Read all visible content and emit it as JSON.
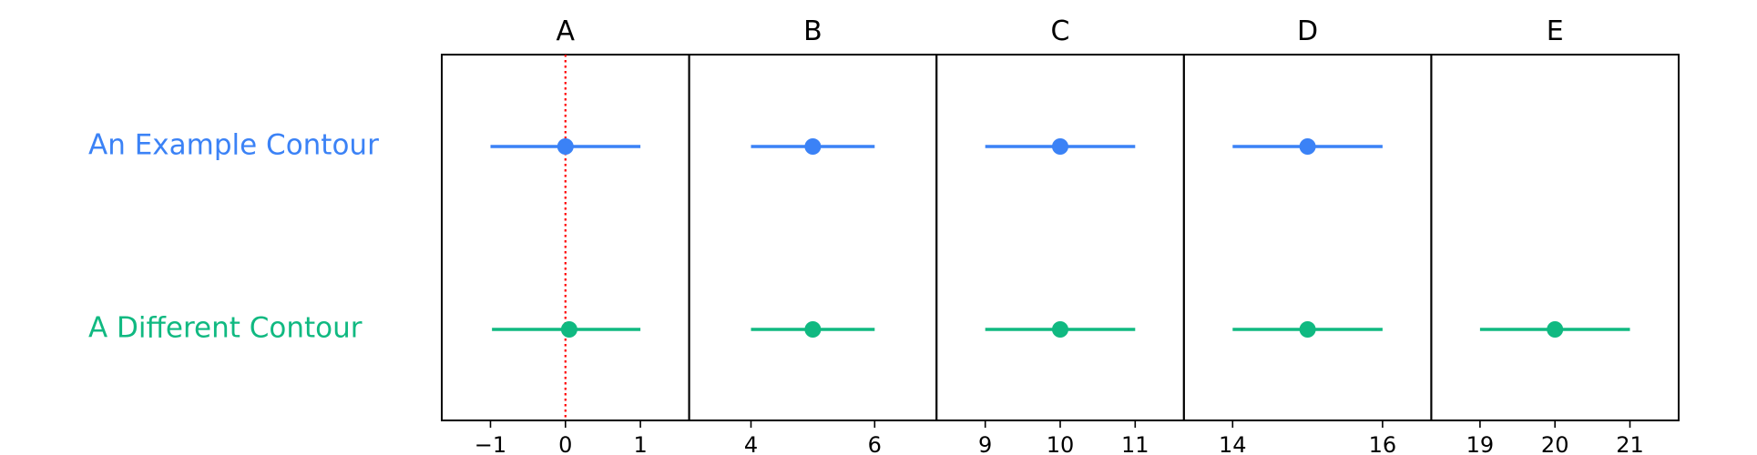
{
  "chart_data": {
    "type": "forest",
    "title": "",
    "xlabel": "",
    "ylabel": "",
    "grid": false,
    "legend": "none",
    "rows": [
      {
        "label": "An Example Contour",
        "color": "#3b82f6"
      },
      {
        "label": "A Different Contour",
        "color": "#10b981"
      }
    ],
    "panels": [
      {
        "title": "A",
        "xlim": [
          -1.65,
          1.65
        ],
        "ticks": [
          -1,
          0,
          1
        ],
        "tick_labels": [
          "−1",
          "0",
          "1"
        ],
        "reference_line": {
          "x": 0,
          "color": "#ff0000",
          "style": "dotted"
        },
        "points": [
          {
            "row": 0,
            "value": 0,
            "low": -1,
            "high": 1
          },
          {
            "row": 1,
            "value": 0.05,
            "low": -0.98,
            "high": 1
          }
        ]
      },
      {
        "title": "B",
        "xlim": [
          3,
          7
        ],
        "ticks": [
          4,
          6
        ],
        "tick_labels": [
          "4",
          "6"
        ],
        "points": [
          {
            "row": 0,
            "value": 5,
            "low": 4,
            "high": 6
          },
          {
            "row": 1,
            "value": 5,
            "low": 4,
            "high": 6
          }
        ]
      },
      {
        "title": "C",
        "xlim": [
          8.35,
          11.65
        ],
        "ticks": [
          9,
          10,
          11
        ],
        "tick_labels": [
          "9",
          "10",
          "11"
        ],
        "points": [
          {
            "row": 0,
            "value": 10,
            "low": 9,
            "high": 11
          },
          {
            "row": 1,
            "value": 10,
            "low": 9,
            "high": 11
          }
        ]
      },
      {
        "title": "D",
        "xlim": [
          13.35,
          16.65
        ],
        "ticks": [
          14,
          16
        ],
        "tick_labels": [
          "14",
          "16"
        ],
        "points": [
          {
            "row": 0,
            "value": 15,
            "low": 14,
            "high": 16
          },
          {
            "row": 1,
            "value": 15,
            "low": 14,
            "high": 16
          }
        ]
      },
      {
        "title": "E",
        "xlim": [
          18.35,
          21.65
        ],
        "ticks": [
          19,
          20,
          21
        ],
        "tick_labels": [
          "19",
          "20",
          "21"
        ],
        "points": [
          {
            "row": 1,
            "value": 20,
            "low": 19,
            "high": 21
          }
        ]
      }
    ]
  }
}
